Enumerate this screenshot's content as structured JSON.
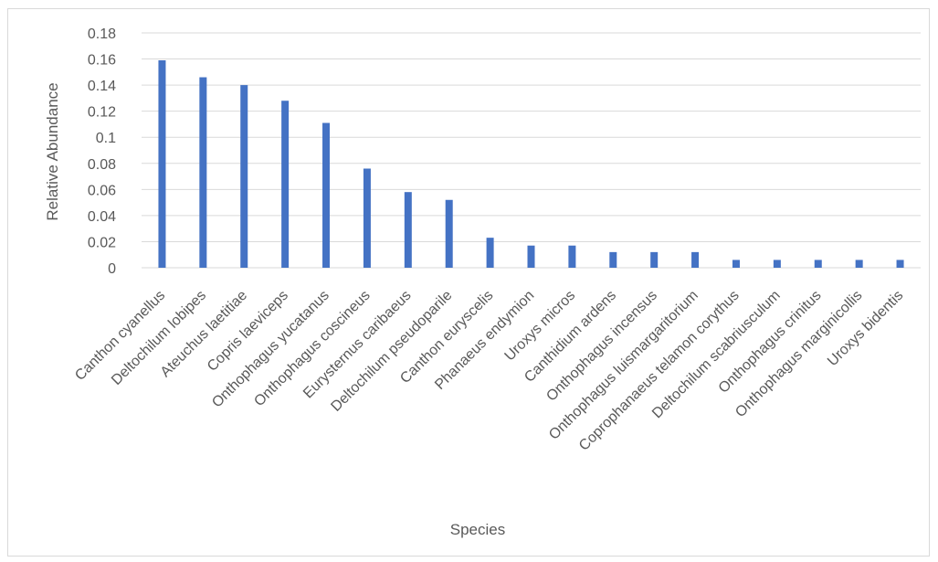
{
  "chart_data": {
    "type": "bar",
    "title": "",
    "xlabel": "Species",
    "ylabel": "Relative Abundance",
    "ylim": [
      0,
      0.18
    ],
    "yticks": [
      "0",
      "0.02",
      "0.04",
      "0.06",
      "0.08",
      "0.1",
      "0.12",
      "0.14",
      "0.16",
      "0.18"
    ],
    "grid": true,
    "legend": "none",
    "bar_color": "#4472C4",
    "categories": [
      "Canthon cyanellus",
      "Deltochilum lobipes",
      "Ateuchus laetitiae",
      "Copris laeviceps",
      "Onthophagus yucatanus",
      "Onthophagus coscineus",
      "Eurysternus caribaeus",
      "Deltochilum pseudoparile",
      "Canthon euryscelis",
      "Phanaeus endymion",
      "Uroxys micros",
      "Canthidium ardens",
      "Onthophagus incensus",
      "Onthophagus luismargaritorium",
      "Coprophanaeus telamon corythus",
      "Deltochilum scabriusculum",
      "Onthophagus crinitus",
      "Onthophagus marginicollis",
      "Uroxys bidentis"
    ],
    "values": [
      0.159,
      0.146,
      0.14,
      0.128,
      0.111,
      0.076,
      0.058,
      0.052,
      0.023,
      0.017,
      0.017,
      0.012,
      0.012,
      0.012,
      0.006,
      0.006,
      0.006,
      0.006,
      0.006
    ]
  }
}
